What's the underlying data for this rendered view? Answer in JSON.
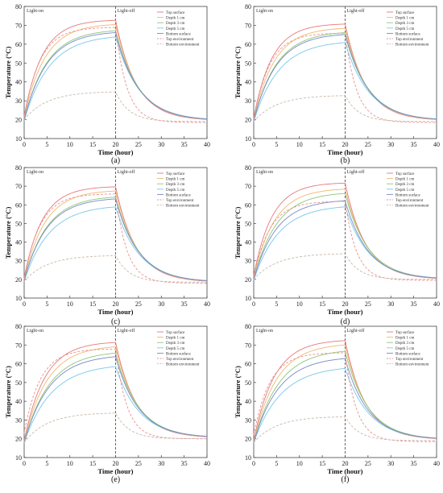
{
  "colors": {
    "top_surface": "#e8787c",
    "depth_1": "#f0b870",
    "depth_3": "#8cc878",
    "depth_5": "#78c8e8",
    "bottom_surface": "#7888c8",
    "top_env": "#e89090",
    "bottom_env": "#c8b8a8",
    "axis": "#444444",
    "divider": "#555555"
  },
  "chart_data": [
    {
      "type": "line",
      "caption": "(a)",
      "xlabel": "Time (hour)",
      "ylabel": "Temperature (°C)",
      "xlim": [
        0,
        40
      ],
      "ylim": [
        10,
        80
      ],
      "xticks": [
        0,
        5,
        10,
        15,
        20,
        25,
        30,
        35,
        40
      ],
      "yticks": [
        10,
        20,
        30,
        40,
        50,
        60,
        70,
        80
      ],
      "light_on_label": "Light-on",
      "light_off_label": "Light-off",
      "divider_x": 20,
      "legend_position": "top-right",
      "series": [
        {
          "name": "Top surface",
          "color_key": "top_surface",
          "dash": "solid",
          "start": 22,
          "peak": 73,
          "tau": 4.0,
          "end": 19.5,
          "decay": 4.5
        },
        {
          "name": "Depth 1 cm",
          "color_key": "depth_1",
          "dash": "solid",
          "start": 21,
          "peak": 71,
          "tau": 4.5,
          "end": 19.5,
          "decay": 4.7
        },
        {
          "name": "Depth 3 cm",
          "color_key": "depth_3",
          "dash": "solid",
          "start": 20,
          "peak": 68,
          "tau": 5.0,
          "end": 19.5,
          "decay": 5.0
        },
        {
          "name": "Depth 5 cm",
          "color_key": "depth_5",
          "dash": "solid",
          "start": 19.5,
          "peak": 65,
          "tau": 5.5,
          "end": 19.5,
          "decay": 5.2
        },
        {
          "name": "Bottom surface",
          "color_key": "bottom_surface",
          "dash": "solid",
          "start": 20,
          "peak": 67,
          "tau": 5.0,
          "end": 19.5,
          "decay": 5.0
        },
        {
          "name": "Top environment",
          "color_key": "top_env",
          "dash": "dashed",
          "start": 21,
          "peak": 69,
          "tau": 3.5,
          "end": 18.5,
          "decay": 2.5
        },
        {
          "name": "Bottom environment",
          "color_key": "bottom_env",
          "dash": "dashed",
          "start": 20,
          "peak": 35,
          "tau": 5.0,
          "end": 19.0,
          "decay": 3.0
        }
      ]
    },
    {
      "type": "line",
      "caption": "(b)",
      "xlabel": "Time (hour)",
      "ylabel": "Temperature (°C)",
      "xlim": [
        0,
        40
      ],
      "ylim": [
        10,
        80
      ],
      "xticks": [
        0,
        5,
        10,
        15,
        20,
        25,
        30,
        35,
        40
      ],
      "yticks": [
        10,
        20,
        30,
        40,
        50,
        60,
        70,
        80
      ],
      "light_on_label": "Light-on",
      "light_off_label": "Light-off",
      "divider_x": 20,
      "legend_position": "top-right",
      "series": [
        {
          "name": "Top surface",
          "color_key": "top_surface",
          "dash": "solid",
          "start": 21,
          "peak": 71,
          "tau": 4.0,
          "end": 19.5,
          "decay": 4.5
        },
        {
          "name": "Depth 1 cm",
          "color_key": "depth_1",
          "dash": "solid",
          "start": 20,
          "peak": 69,
          "tau": 4.5,
          "end": 19.5,
          "decay": 4.7
        },
        {
          "name": "Depth 3 cm",
          "color_key": "depth_3",
          "dash": "solid",
          "start": 19.5,
          "peak": 67,
          "tau": 5.0,
          "end": 19.5,
          "decay": 5.0
        },
        {
          "name": "Depth 5 cm",
          "color_key": "depth_5",
          "dash": "solid",
          "start": 19,
          "peak": 62,
          "tau": 5.5,
          "end": 19.5,
          "decay": 5.2
        },
        {
          "name": "Bottom surface",
          "color_key": "bottom_surface",
          "dash": "solid",
          "start": 19.5,
          "peak": 66,
          "tau": 5.0,
          "end": 19.5,
          "decay": 5.0
        },
        {
          "name": "Top environment",
          "color_key": "top_env",
          "dash": "dashed",
          "start": 20,
          "peak": 66,
          "tau": 3.5,
          "end": 18.5,
          "decay": 2.5
        },
        {
          "name": "Bottom environment",
          "color_key": "bottom_env",
          "dash": "dashed",
          "start": 19,
          "peak": 33,
          "tau": 5.0,
          "end": 19.0,
          "decay": 3.0
        }
      ]
    },
    {
      "type": "line",
      "caption": "(c)",
      "xlabel": "Time (hour)",
      "ylabel": "Temperature (°C)",
      "xlim": [
        0,
        40
      ],
      "ylim": [
        10,
        80
      ],
      "xticks": [
        0,
        5,
        10,
        15,
        20,
        25,
        30,
        35,
        40
      ],
      "yticks": [
        10,
        20,
        30,
        40,
        50,
        60,
        70,
        80
      ],
      "light_on_label": "Light-on",
      "light_off_label": "Light-off",
      "divider_x": 20,
      "legend_position": "top-right",
      "series": [
        {
          "name": "Top surface",
          "color_key": "top_surface",
          "dash": "solid",
          "start": 21,
          "peak": 70,
          "tau": 4.0,
          "end": 18.5,
          "decay": 4.5
        },
        {
          "name": "Depth 1 cm",
          "color_key": "depth_1",
          "dash": "solid",
          "start": 20,
          "peak": 68,
          "tau": 4.5,
          "end": 18.5,
          "decay": 4.7
        },
        {
          "name": "Depth 3 cm",
          "color_key": "depth_3",
          "dash": "solid",
          "start": 19.5,
          "peak": 65,
          "tau": 5.0,
          "end": 18.5,
          "decay": 5.0
        },
        {
          "name": "Depth 5 cm",
          "color_key": "depth_5",
          "dash": "solid",
          "start": 19,
          "peak": 60,
          "tau": 5.5,
          "end": 18.5,
          "decay": 5.2
        },
        {
          "name": "Bottom surface",
          "color_key": "bottom_surface",
          "dash": "solid",
          "start": 19.5,
          "peak": 64,
          "tau": 5.0,
          "end": 18.5,
          "decay": 5.0
        },
        {
          "name": "Top environment",
          "color_key": "top_env",
          "dash": "dashed",
          "start": 20,
          "peak": 66,
          "tau": 3.5,
          "end": 18.0,
          "decay": 2.5
        },
        {
          "name": "Bottom environment",
          "color_key": "bottom_env",
          "dash": "dashed",
          "start": 19,
          "peak": 33,
          "tau": 5.0,
          "end": 18.5,
          "decay": 3.0
        }
      ]
    },
    {
      "type": "line",
      "caption": "(d)",
      "xlabel": "Time (hour)",
      "ylabel": "Temperature (°C)",
      "xlim": [
        0,
        40
      ],
      "ylim": [
        10,
        80
      ],
      "xticks": [
        0,
        5,
        10,
        15,
        20,
        25,
        30,
        35,
        40
      ],
      "yticks": [
        10,
        20,
        30,
        40,
        50,
        60,
        70,
        80
      ],
      "light_on_label": "Light-on",
      "light_off_label": "Light-off",
      "divider_x": 20,
      "legend_position": "top-right",
      "series": [
        {
          "name": "Top surface",
          "color_key": "top_surface",
          "dash": "solid",
          "start": 22,
          "peak": 72,
          "tau": 4.0,
          "end": 20,
          "decay": 4.5
        },
        {
          "name": "Depth 1 cm",
          "color_key": "depth_1",
          "dash": "solid",
          "start": 21,
          "peak": 69,
          "tau": 4.5,
          "end": 20,
          "decay": 4.7
        },
        {
          "name": "Depth 3 cm",
          "color_key": "depth_3",
          "dash": "solid",
          "start": 20,
          "peak": 67,
          "tau": 5.0,
          "end": 20,
          "decay": 5.0
        },
        {
          "name": "Depth 5 cm",
          "color_key": "depth_5",
          "dash": "solid",
          "start": 19.5,
          "peak": 60,
          "tau": 5.5,
          "end": 20,
          "decay": 5.2
        },
        {
          "name": "Bottom surface",
          "color_key": "bottom_surface",
          "dash": "solid",
          "start": 20,
          "peak": 63,
          "tau": 5.0,
          "end": 20,
          "decay": 5.0
        },
        {
          "name": "Top environment",
          "color_key": "top_env",
          "dash": "dashed",
          "start": 21,
          "peak": 62,
          "tau": 3.5,
          "end": 19.5,
          "decay": 2.5
        },
        {
          "name": "Bottom environment",
          "color_key": "bottom_env",
          "dash": "dashed",
          "start": 20,
          "peak": 34,
          "tau": 5.0,
          "end": 20,
          "decay": 3.0
        }
      ]
    },
    {
      "type": "line",
      "caption": "(e)",
      "xlabel": "Time (hour)",
      "ylabel": "Temperature (°C)",
      "xlim": [
        0,
        40
      ],
      "ylim": [
        10,
        80
      ],
      "xticks": [
        0,
        5,
        10,
        15,
        20,
        25,
        30,
        35,
        40
      ],
      "yticks": [
        10,
        20,
        30,
        40,
        50,
        60,
        70,
        80
      ],
      "light_on_label": "Light-on",
      "light_off_label": "Light-off",
      "divider_x": 20,
      "legend_position": "top-right",
      "series": [
        {
          "name": "Top surface",
          "color_key": "top_surface",
          "dash": "solid",
          "start": 19,
          "peak": 72,
          "tau": 4.5,
          "end": 20.5,
          "decay": 4.5
        },
        {
          "name": "Depth 1 cm",
          "color_key": "depth_1",
          "dash": "solid",
          "start": 18.5,
          "peak": 70,
          "tau": 5.0,
          "end": 20.5,
          "decay": 4.7
        },
        {
          "name": "Depth 3 cm",
          "color_key": "depth_3",
          "dash": "solid",
          "start": 18,
          "peak": 67,
          "tau": 5.5,
          "end": 20.5,
          "decay": 5.0
        },
        {
          "name": "Depth 5 cm",
          "color_key": "depth_5",
          "dash": "solid",
          "start": 18,
          "peak": 60,
          "tau": 6.0,
          "end": 20.5,
          "decay": 5.2
        },
        {
          "name": "Bottom surface",
          "color_key": "bottom_surface",
          "dash": "solid",
          "start": 18,
          "peak": 65,
          "tau": 5.5,
          "end": 20.5,
          "decay": 5.0
        },
        {
          "name": "Top environment",
          "color_key": "top_env",
          "dash": "dashed",
          "start": 23,
          "peak": 68,
          "tau": 3.5,
          "end": 20,
          "decay": 2.5
        },
        {
          "name": "Bottom environment",
          "color_key": "bottom_env",
          "dash": "dashed",
          "start": 18,
          "peak": 34,
          "tau": 5.0,
          "end": 20,
          "decay": 3.0
        }
      ]
    },
    {
      "type": "line",
      "caption": "(f)",
      "xlabel": "Time (hour)",
      "ylabel": "Temperature (°C)",
      "xlim": [
        0,
        40
      ],
      "ylim": [
        10,
        80
      ],
      "xticks": [
        0,
        5,
        10,
        15,
        20,
        25,
        30,
        35,
        40
      ],
      "yticks": [
        10,
        20,
        30,
        40,
        50,
        60,
        70,
        80
      ],
      "light_on_label": "Light-on",
      "light_off_label": "Light-off",
      "divider_x": 20,
      "legend_position": "top-right",
      "series": [
        {
          "name": "Top surface",
          "color_key": "top_surface",
          "dash": "solid",
          "start": 19,
          "peak": 73,
          "tau": 4.5,
          "end": 19.5,
          "decay": 4.5
        },
        {
          "name": "Depth 1 cm",
          "color_key": "depth_1",
          "dash": "solid",
          "start": 18.5,
          "peak": 71,
          "tau": 5.0,
          "end": 19.5,
          "decay": 4.7
        },
        {
          "name": "Depth 3 cm",
          "color_key": "depth_3",
          "dash": "solid",
          "start": 18,
          "peak": 68,
          "tau": 5.5,
          "end": 19.5,
          "decay": 5.0
        },
        {
          "name": "Depth 5 cm",
          "color_key": "depth_5",
          "dash": "solid",
          "start": 18,
          "peak": 59,
          "tau": 6.0,
          "end": 19.5,
          "decay": 5.2
        },
        {
          "name": "Bottom surface",
          "color_key": "bottom_surface",
          "dash": "solid",
          "start": 18,
          "peak": 64,
          "tau": 5.5,
          "end": 19.5,
          "decay": 5.0
        },
        {
          "name": "Top environment",
          "color_key": "top_env",
          "dash": "dashed",
          "start": 22,
          "peak": 66,
          "tau": 3.5,
          "end": 18.5,
          "decay": 2.5
        },
        {
          "name": "Bottom environment",
          "color_key": "bottom_env",
          "dash": "dashed",
          "start": 18,
          "peak": 32,
          "tau": 5.0,
          "end": 19.0,
          "decay": 3.0
        }
      ]
    }
  ]
}
